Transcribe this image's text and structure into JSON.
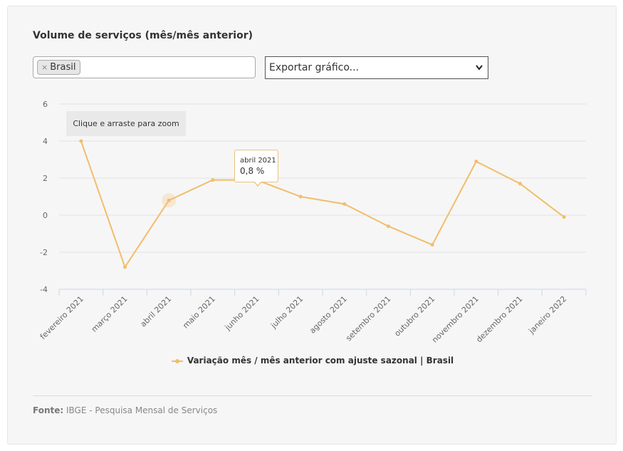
{
  "title": "Volume de serviços (mês/mês anterior)",
  "filter": {
    "tag_label": "Brasil",
    "remove_symbol": "×"
  },
  "export": {
    "label": "Exportar gráfico...",
    "chevron": "chevron-down-icon"
  },
  "zoom_hint": "Clique e arraste para zoom",
  "tooltip": {
    "period": "abril 2021",
    "value": "0,8 %"
  },
  "source": {
    "label": "Fonte:",
    "text": "IBGE - Pesquisa Mensal de Serviços"
  },
  "colors": {
    "series": "#f2bd6b",
    "grid": "#e3e3e3",
    "axis": "#ccd6eb"
  },
  "chart_data": {
    "type": "line",
    "categories": [
      "fevereiro 2021",
      "março 2021",
      "abril 2021",
      "maio 2021",
      "junho 2021",
      "julho 2021",
      "agosto 2021",
      "setembro 2021",
      "outubro 2021",
      "novembro 2021",
      "dezembro 2021",
      "janeiro 2022"
    ],
    "series": [
      {
        "name": "Variação mês / mês anterior com ajuste sazonal | Brasil",
        "values": [
          4.0,
          -2.8,
          0.8,
          1.9,
          1.9,
          1.0,
          0.6,
          -0.6,
          -1.6,
          2.9,
          1.7,
          -0.1
        ]
      }
    ],
    "ylim": [
      -4,
      6
    ],
    "yticks": [
      6,
      4,
      2,
      0,
      -2,
      -4
    ],
    "grid": true,
    "legend": "bottom-center",
    "highlighted_category": "abril 2021"
  }
}
